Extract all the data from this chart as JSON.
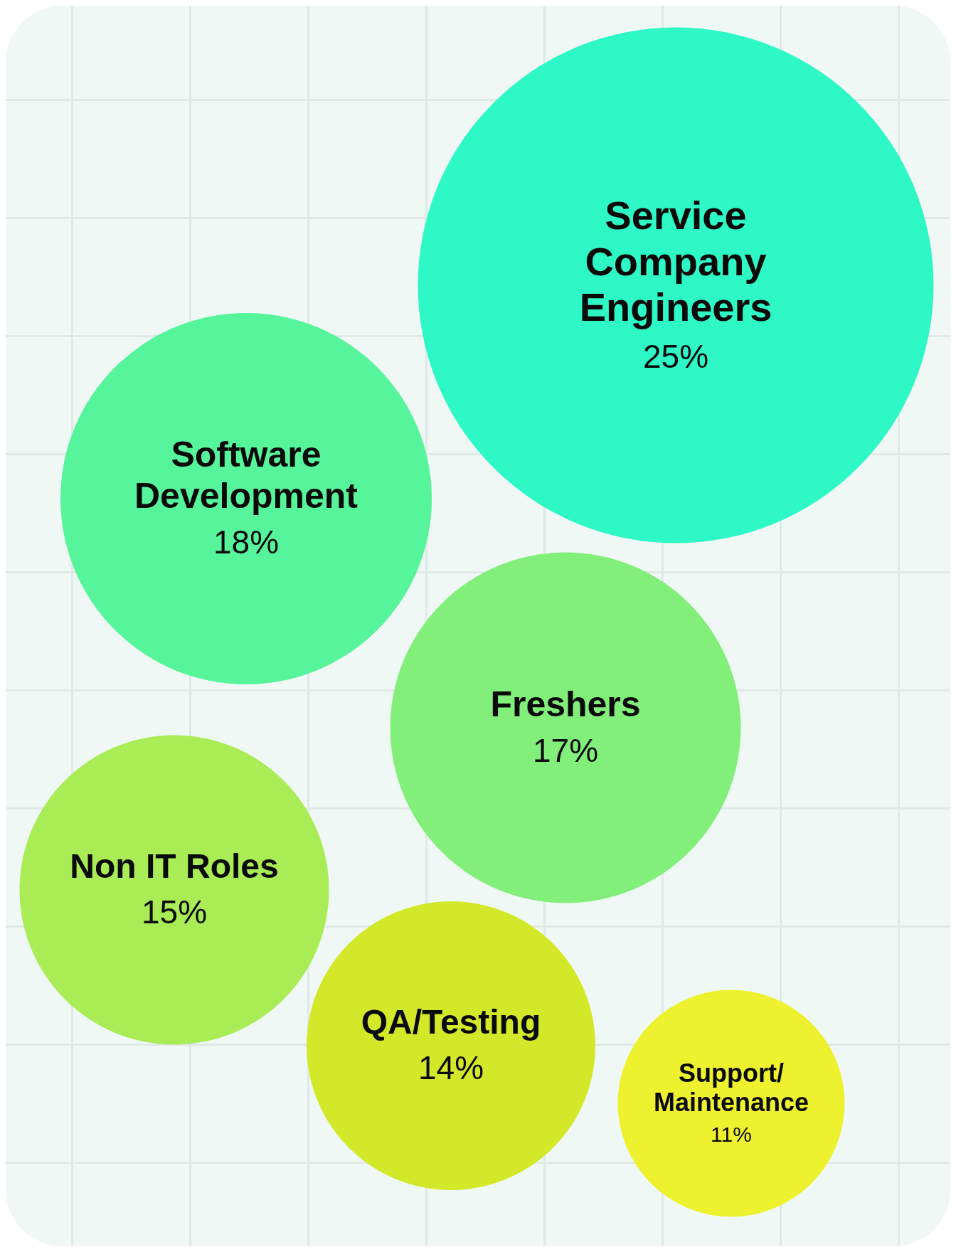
{
  "chart_data": {
    "type": "other",
    "categories": [
      "Service Company Engineers",
      "Software Development",
      "Freshers",
      "Non IT Roles",
      "QA/Testing",
      "Support/Maintenance"
    ],
    "values": [
      25,
      18,
      17,
      15,
      14,
      11
    ],
    "colors": [
      "#2ef8c6",
      "#56f59b",
      "#82ef7b",
      "#a9ec55",
      "#d4e82a",
      "#eef22e"
    ],
    "value_labels": [
      "25%",
      "18%",
      "17%",
      "15%",
      "14%",
      "11%"
    ]
  }
}
